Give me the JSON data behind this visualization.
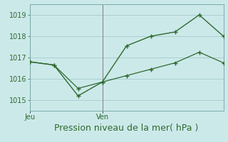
{
  "line1_x": [
    0,
    1,
    2,
    3,
    4,
    5,
    6,
    7,
    8
  ],
  "line1_y": [
    1016.8,
    1016.65,
    1015.2,
    1015.85,
    1017.55,
    1018.0,
    1018.2,
    1019.0,
    1018.0
  ],
  "line2_x": [
    0,
    1,
    2,
    3,
    4,
    5,
    6,
    7,
    8
  ],
  "line2_y": [
    1016.8,
    1016.65,
    1015.55,
    1015.85,
    1016.15,
    1016.45,
    1016.75,
    1017.25,
    1016.75
  ],
  "line_color": "#2d6a2d",
  "bg_color": "#cce9ea",
  "grid_color": "#aacfcf",
  "xlabel": "Pression niveau de la mer( hPa )",
  "xlabel_fontsize": 9,
  "tick_label_color": "#2d6a2d",
  "yticks": [
    1015,
    1016,
    1017,
    1018,
    1019
  ],
  "ytick_fontsize": 7,
  "xtick_fontsize": 7,
  "ylim": [
    1014.5,
    1019.5
  ],
  "xlim": [
    0,
    8
  ],
  "jeu_x": 0,
  "ven_x": 3,
  "vline_x": [
    0,
    3
  ],
  "vline_color": "#888888"
}
